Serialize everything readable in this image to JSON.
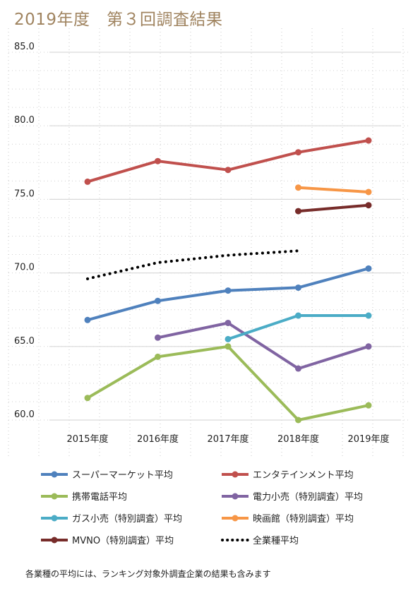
{
  "title": "2019年度　第３回調査結果",
  "footnote": "各業種の平均には、ランキング対象外調査企業の結果も含みます",
  "chart_data": {
    "type": "line",
    "categories": [
      "2015年度",
      "2016年度",
      "2017年度",
      "2018年度",
      "2019年度"
    ],
    "yticks": [
      "60.0",
      "65.0",
      "70.0",
      "75.0",
      "80.0",
      "85.0"
    ],
    "ylim": [
      60,
      85
    ],
    "grid": true,
    "legend_position": "bottom",
    "series": [
      {
        "name": "スーパーマーケット平均",
        "color": "#4f81bd",
        "style": "solid",
        "values": [
          66.8,
          68.1,
          68.8,
          69.0,
          70.3
        ]
      },
      {
        "name": "エンタテインメント平均",
        "color": "#c0504d",
        "style": "solid",
        "values": [
          76.2,
          77.6,
          77.0,
          78.2,
          79.0
        ]
      },
      {
        "name": "携帯電話平均",
        "color": "#9bbb59",
        "style": "solid",
        "values": [
          61.5,
          64.3,
          65.0,
          60.0,
          61.0
        ]
      },
      {
        "name": "電力小売（特別調査）平均",
        "color": "#8064a2",
        "style": "solid",
        "values": [
          null,
          65.6,
          66.6,
          63.5,
          65.0
        ]
      },
      {
        "name": "ガス小売（特別調査）平均",
        "color": "#4bacc6",
        "style": "solid",
        "values": [
          null,
          null,
          65.5,
          67.1,
          67.1
        ]
      },
      {
        "name": "映画館（特別調査）平均",
        "color": "#f79646",
        "style": "solid",
        "values": [
          null,
          null,
          null,
          75.8,
          75.5
        ]
      },
      {
        "name": "MVNO（特別調査）平均",
        "color": "#772c2a",
        "style": "solid",
        "values": [
          null,
          null,
          null,
          74.2,
          74.6
        ]
      },
      {
        "name": "全業種平均",
        "color": "#000000",
        "style": "dotted",
        "values": [
          69.6,
          70.7,
          71.2,
          71.5,
          null
        ]
      }
    ]
  }
}
